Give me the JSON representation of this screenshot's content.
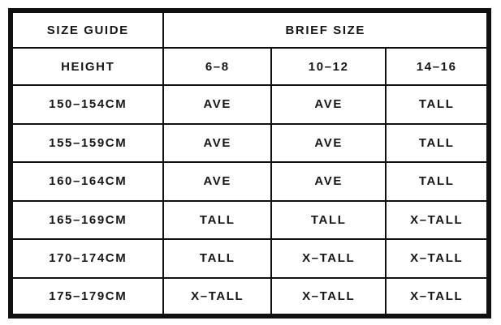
{
  "colors": {
    "border": "#101010",
    "text": "#161616",
    "background": "#ffffff"
  },
  "chart_data": {
    "type": "table",
    "title": "SIZE GUIDE",
    "group_header": "BRIEF SIZE",
    "columns": [
      "HEIGHT",
      "6–8",
      "10–12",
      "14–16"
    ],
    "rows": [
      [
        "150–154CM",
        "AVE",
        "AVE",
        "TALL"
      ],
      [
        "155–159CM",
        "AVE",
        "AVE",
        "TALL"
      ],
      [
        "160–164CM",
        "AVE",
        "AVE",
        "TALL"
      ],
      [
        "165–169CM",
        "TALL",
        "TALL",
        "X–TALL"
      ],
      [
        "170–174CM",
        "TALL",
        "X–TALL",
        "X–TALL"
      ],
      [
        "175–179CM",
        "X–TALL",
        "X–TALL",
        "X–TALL"
      ]
    ]
  }
}
